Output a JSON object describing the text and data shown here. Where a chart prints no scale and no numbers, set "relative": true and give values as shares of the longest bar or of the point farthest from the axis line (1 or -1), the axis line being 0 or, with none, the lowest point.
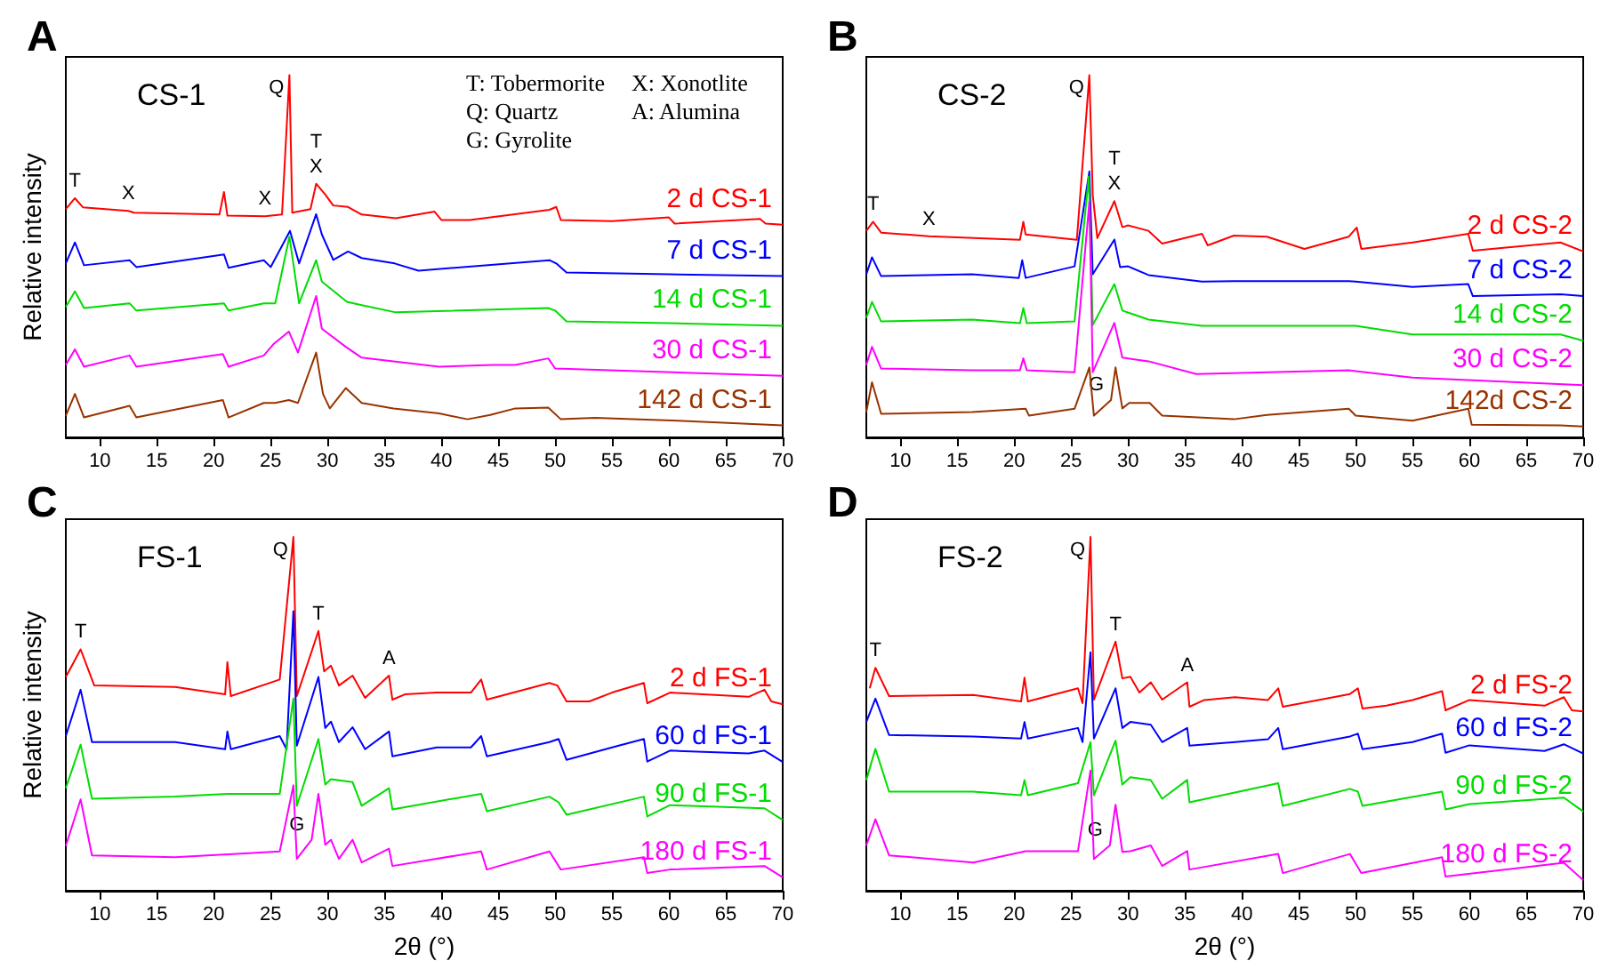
{
  "chart_data": [
    {
      "type": "line",
      "title": "A",
      "subtitle": "CS-1",
      "ylabel": "Relative intensity",
      "relative": true,
      "xlim": [
        7,
        70
      ],
      "xticks": [
        10,
        15,
        20,
        25,
        30,
        35,
        40,
        45,
        50,
        55,
        60,
        65,
        70
      ],
      "annotations": [
        "T: Tobermorite",
        "X: Xonotlite",
        "Q: Quartz",
        "A: Alumina",
        "G: Gyrolite",
        {
          "text": "T",
          "x": 7.8,
          "y": 0.66
        },
        {
          "text": "X",
          "x": 12.5,
          "y": 0.625
        },
        {
          "text": "X",
          "x": 24.5,
          "y": 0.61
        },
        {
          "text": "Q",
          "x": 26.65,
          "y": 1.0
        },
        {
          "text": "T",
          "x": 29,
          "y": 0.7
        },
        {
          "text": "X",
          "x": 29,
          "y": 0.7
        }
      ],
      "series": [
        {
          "name": "2 d CS-1",
          "color": "#ff0000",
          "x": [
            7,
            7.8,
            8.5,
            12.5,
            13,
            20.5,
            20.9,
            21.2,
            24.5,
            26,
            26.65,
            26.9,
            28.5,
            29,
            29.8,
            30.5,
            31.8,
            33,
            36,
            39.4,
            40,
            42.5,
            49.5,
            50.1,
            50.5,
            55,
            60,
            60.5,
            68,
            68.5,
            70
          ],
          "values": [
            0.63,
            0.66,
            0.635,
            0.625,
            0.62,
            0.615,
            0.677,
            0.612,
            0.61,
            0.615,
            1.0,
            0.62,
            0.63,
            0.7,
            0.67,
            0.64,
            0.636,
            0.615,
            0.605,
            0.623,
            0.6,
            0.6,
            0.628,
            0.636,
            0.6,
            0.597,
            0.607,
            0.59,
            0.603,
            0.59,
            0.587
          ]
        },
        {
          "name": "7 d CS-1",
          "color": "#0000ff",
          "x": [
            7,
            7.8,
            8.6,
            12.6,
            13.2,
            20.9,
            21.3,
            24.4,
            25,
            26.7,
            27.5,
            29,
            29.5,
            30.5,
            31.8,
            33,
            35.9,
            38,
            49.5,
            50.1,
            51,
            60,
            70
          ],
          "values": [
            0.48,
            0.538,
            0.475,
            0.489,
            0.47,
            0.505,
            0.468,
            0.489,
            0.47,
            0.57,
            0.48,
            0.616,
            0.56,
            0.49,
            0.513,
            0.495,
            0.48,
            0.46,
            0.489,
            0.48,
            0.455,
            0.45,
            0.445
          ]
        },
        {
          "name": "14 d CS-1",
          "color": "#00dd00",
          "x": [
            7,
            7.8,
            8.6,
            12.6,
            13.2,
            20.9,
            21.3,
            24.4,
            25.4,
            26.65,
            27.5,
            29,
            29.5,
            31.7,
            33,
            36,
            49.4,
            50,
            51,
            60,
            70
          ],
          "values": [
            0.36,
            0.403,
            0.357,
            0.37,
            0.35,
            0.37,
            0.35,
            0.37,
            0.37,
            0.554,
            0.37,
            0.489,
            0.43,
            0.374,
            0.365,
            0.345,
            0.357,
            0.35,
            0.32,
            0.315,
            0.308
          ]
        },
        {
          "name": "30 d CS-1",
          "color": "#ff00ff",
          "x": [
            7,
            7.8,
            8.6,
            12.6,
            13.2,
            20.8,
            21.3,
            24.4,
            25.3,
            26.6,
            27.4,
            29,
            29.5,
            31.6,
            33,
            35.8,
            39.8,
            44.5,
            46.5,
            49.4,
            50,
            70
          ],
          "values": [
            0.2,
            0.243,
            0.195,
            0.226,
            0.195,
            0.23,
            0.195,
            0.226,
            0.259,
            0.292,
            0.234,
            0.39,
            0.3,
            0.25,
            0.22,
            0.21,
            0.195,
            0.2,
            0.2,
            0.218,
            0.19,
            0.17
          ]
        },
        {
          "name": "142 d CS-1",
          "color": "#993300",
          "x": [
            7,
            7.8,
            8.6,
            12.6,
            13.2,
            20.8,
            21.3,
            24.4,
            25.4,
            26.6,
            27.4,
            29,
            29.6,
            30.2,
            31.6,
            33,
            35.8,
            39.8,
            42.3,
            44.3,
            46.5,
            49.4,
            50.5,
            53.5,
            60.8,
            70
          ],
          "values": [
            0.06,
            0.12,
            0.055,
            0.087,
            0.055,
            0.103,
            0.055,
            0.095,
            0.095,
            0.103,
            0.095,
            0.234,
            0.12,
            0.08,
            0.136,
            0.095,
            0.08,
            0.066,
            0.05,
            0.062,
            0.08,
            0.082,
            0.05,
            0.054,
            0.046,
            0.033
          ]
        }
      ]
    },
    {
      "type": "line",
      "title": "B",
      "subtitle": "CS-2",
      "relative": true,
      "xlim": [
        7,
        70
      ],
      "xticks": [
        10,
        15,
        20,
        25,
        30,
        35,
        40,
        45,
        50,
        55,
        60,
        65,
        70
      ],
      "annotations": [
        {
          "text": "T",
          "x": 7.6,
          "y": 0.595
        },
        {
          "text": "X",
          "x": 12.5,
          "y": 0.555
        },
        {
          "text": "Q",
          "x": 26.6,
          "y": 1.0
        },
        {
          "text": "T",
          "x": 28.8,
          "y": 0.652
        },
        {
          "text": "X",
          "x": 28.8,
          "y": 0.652
        },
        {
          "text": "G",
          "x": 28.5,
          "y": 0.103
        }
      ],
      "series": [
        {
          "name": "2 d CS-2",
          "color": "#ff0000",
          "x": [
            7,
            7.6,
            8.3,
            12.5,
            20.5,
            20.8,
            21,
            25.5,
            26.6,
            26.9,
            27.3,
            28.8,
            29.5,
            30,
            31.8,
            33,
            36.5,
            37,
            39.3,
            42.2,
            45.5,
            49.4,
            50.1,
            50.5,
            55,
            59.9,
            60.3,
            68,
            70
          ],
          "values": [
            0.57,
            0.595,
            0.565,
            0.555,
            0.545,
            0.595,
            0.56,
            0.545,
            1.0,
            0.669,
            0.55,
            0.652,
            0.58,
            0.585,
            0.57,
            0.535,
            0.562,
            0.53,
            0.557,
            0.554,
            0.52,
            0.554,
            0.579,
            0.52,
            0.538,
            0.562,
            0.515,
            0.538,
            0.513
          ]
        },
        {
          "name": "7 d CS-2",
          "color": "#0000ff",
          "x": [
            7,
            7.5,
            8.3,
            16.3,
            20.4,
            20.7,
            21,
            25.3,
            26.6,
            26.9,
            28.8,
            29.3,
            30,
            31.8,
            36.5,
            39.3,
            42.2,
            49.4,
            50,
            55,
            59.9,
            60.3,
            68,
            70
          ],
          "values": [
            0.45,
            0.497,
            0.445,
            0.45,
            0.44,
            0.489,
            0.44,
            0.472,
            0.734,
            0.45,
            0.546,
            0.47,
            0.472,
            0.448,
            0.43,
            0.431,
            0.431,
            0.431,
            0.43,
            0.415,
            0.423,
            0.39,
            0.395,
            0.39
          ]
        },
        {
          "name": "14 d CS-2",
          "color": "#00dd00",
          "x": [
            7,
            7.5,
            8.3,
            16.3,
            20.5,
            20.8,
            21.1,
            25.3,
            26.55,
            26.9,
            28.8,
            29.5,
            31.8,
            36.5,
            42.2,
            49.4,
            50,
            55,
            60,
            68,
            70
          ],
          "values": [
            0.33,
            0.374,
            0.32,
            0.325,
            0.315,
            0.357,
            0.315,
            0.32,
            0.72,
            0.31,
            0.423,
            0.35,
            0.325,
            0.308,
            0.308,
            0.308,
            0.308,
            0.284,
            0.284,
            0.284,
            0.267
          ]
        },
        {
          "name": "30 d CS-2",
          "color": "#ff00ff",
          "x": [
            7,
            7.5,
            8.3,
            16.3,
            20.5,
            20.8,
            21.1,
            25.3,
            26.6,
            26.9,
            28.8,
            29.5,
            31.8,
            36,
            49.4,
            55,
            70
          ],
          "values": [
            0.2,
            0.25,
            0.19,
            0.185,
            0.185,
            0.218,
            0.185,
            0.18,
            0.65,
            0.18,
            0.316,
            0.22,
            0.21,
            0.175,
            0.185,
            0.165,
            0.144
          ]
        },
        {
          "name": "142d CS-2",
          "color": "#993300",
          "x": [
            7,
            7.5,
            8.3,
            16.3,
            21,
            21.3,
            25.3,
            26.6,
            27,
            28.5,
            28.9,
            29.5,
            30.1,
            31.9,
            33,
            39.3,
            42.2,
            49.4,
            50,
            55,
            59.9,
            60.2,
            68,
            70
          ],
          "values": [
            0.07,
            0.152,
            0.065,
            0.07,
            0.079,
            0.06,
            0.079,
            0.193,
            0.06,
            0.103,
            0.193,
            0.08,
            0.095,
            0.095,
            0.06,
            0.05,
            0.062,
            0.079,
            0.06,
            0.046,
            0.079,
            0.035,
            0.033,
            0.03
          ]
        }
      ]
    },
    {
      "type": "line",
      "title": "C",
      "subtitle": "FS-1",
      "ylabel": "Relative intensity",
      "xlabel": "2θ (°)",
      "relative": true,
      "xlim": [
        7,
        70
      ],
      "xticks": [
        10,
        15,
        20,
        25,
        30,
        35,
        40,
        45,
        50,
        55,
        60,
        65,
        70
      ],
      "annotations": [
        {
          "text": "T",
          "x": 8.3,
          "y": 0.682
        },
        {
          "text": "Q",
          "x": 27,
          "y": 1.0
        },
        {
          "text": "T",
          "x": 29.2,
          "y": 0.734
        },
        {
          "text": "A",
          "x": 35.4,
          "y": 0.608
        },
        {
          "text": "G",
          "x": 28.6,
          "y": 0.144
        }
      ],
      "series": [
        {
          "name": "2 d FS-1",
          "color": "#ff0000",
          "x": [
            7,
            8.3,
            9.5,
            16.6,
            21,
            21.2,
            21.5,
            25.8,
            27,
            27.3,
            29.2,
            29.7,
            30.3,
            31,
            32.2,
            33.3,
            35.4,
            35.7,
            36.8,
            39.6,
            42.6,
            43.5,
            44,
            49.5,
            50.2,
            51,
            53,
            55,
            57.8,
            58.1,
            60.1,
            67,
            68.4,
            69,
            70
          ],
          "values": [
            0.604,
            0.682,
            0.58,
            0.576,
            0.555,
            0.646,
            0.55,
            0.597,
            1.0,
            0.55,
            0.734,
            0.62,
            0.636,
            0.58,
            0.608,
            0.545,
            0.608,
            0.54,
            0.555,
            0.56,
            0.56,
            0.597,
            0.54,
            0.587,
            0.58,
            0.535,
            0.535,
            0.56,
            0.587,
            0.53,
            0.56,
            0.548,
            0.568,
            0.535,
            0.527
          ]
        },
        {
          "name": "60 d FS-1",
          "color": "#0000ff",
          "x": [
            7,
            8.3,
            9.3,
            16.6,
            21,
            21.2,
            21.5,
            25.8,
            26.4,
            27,
            27.3,
            29.2,
            29.8,
            30.3,
            31,
            32.2,
            33.3,
            35.4,
            35.7,
            39.6,
            42.6,
            43.5,
            44,
            49.5,
            50.3,
            51,
            55,
            57.8,
            58.1,
            60.1,
            67,
            68.4,
            70
          ],
          "values": [
            0.437,
            0.568,
            0.42,
            0.42,
            0.4,
            0.45,
            0.4,
            0.437,
            0.4,
            0.79,
            0.41,
            0.604,
            0.46,
            0.478,
            0.42,
            0.462,
            0.4,
            0.45,
            0.38,
            0.405,
            0.405,
            0.437,
            0.38,
            0.42,
            0.429,
            0.37,
            0.405,
            0.429,
            0.365,
            0.396,
            0.388,
            0.396,
            0.364
          ]
        },
        {
          "name": "90 d FS-1",
          "color": "#00dd00",
          "x": [
            7,
            8.3,
            9.3,
            16.6,
            21.2,
            25.8,
            27,
            27.3,
            29.2,
            29.8,
            30.3,
            32.2,
            33,
            35.4,
            35.7,
            43.5,
            44,
            49.5,
            50.3,
            51,
            57.8,
            58.1,
            60.1,
            68.4,
            70
          ],
          "values": [
            0.29,
            0.413,
            0.26,
            0.266,
            0.274,
            0.274,
            0.543,
            0.24,
            0.429,
            0.3,
            0.315,
            0.307,
            0.24,
            0.29,
            0.23,
            0.274,
            0.225,
            0.266,
            0.25,
            0.215,
            0.266,
            0.21,
            0.242,
            0.233,
            0.2
          ]
        },
        {
          "name": "180 d FS-1",
          "color": "#ff00ff",
          "x": [
            7,
            8.3,
            9.3,
            16.6,
            21.3,
            25.8,
            27,
            27.3,
            28.6,
            29.2,
            29.8,
            30.3,
            31,
            32.2,
            33,
            35.4,
            35.7,
            43.5,
            44,
            49.5,
            50.5,
            57.8,
            58.1,
            60.1,
            68.4,
            70
          ],
          "values": [
            0.127,
            0.258,
            0.1,
            0.095,
            0.103,
            0.111,
            0.298,
            0.09,
            0.144,
            0.274,
            0.13,
            0.144,
            0.09,
            0.144,
            0.08,
            0.119,
            0.07,
            0.111,
            0.06,
            0.111,
            0.06,
            0.095,
            0.05,
            0.06,
            0.07,
            0.038
          ]
        }
      ]
    },
    {
      "type": "line",
      "title": "D",
      "subtitle": "FS-2",
      "xlabel": "2θ (°)",
      "relative": true,
      "xlim": [
        7,
        70
      ],
      "xticks": [
        10,
        15,
        20,
        25,
        30,
        35,
        40,
        45,
        50,
        55,
        60,
        65,
        70
      ],
      "annotations": [
        {
          "text": "T",
          "x": 7.8,
          "y": 0.63
        },
        {
          "text": "Q",
          "x": 26.7,
          "y": 1.0
        },
        {
          "text": "T",
          "x": 28.9,
          "y": 0.704
        },
        {
          "text": "A",
          "x": 35.2,
          "y": 0.589
        },
        {
          "text": "G",
          "x": 28.4,
          "y": 0.128
        }
      ],
      "series": [
        {
          "name": "2 d FS-2",
          "color": "#ff0000",
          "x": [
            7.3,
            7.8,
            9,
            16.4,
            20.6,
            20.9,
            21.2,
            25.6,
            26,
            26.7,
            27,
            28.9,
            29.5,
            30.2,
            31,
            32,
            33,
            35.2,
            35.4,
            36.7,
            39.4,
            42.3,
            43.2,
            43.6,
            49.5,
            50.2,
            50.6,
            52.7,
            55,
            57.6,
            57.9,
            60,
            66.6,
            68.3,
            69,
            70
          ],
          "values": [
            0.572,
            0.63,
            0.55,
            0.553,
            0.535,
            0.602,
            0.535,
            0.572,
            0.53,
            1.0,
            0.54,
            0.704,
            0.6,
            0.605,
            0.56,
            0.589,
            0.54,
            0.589,
            0.52,
            0.539,
            0.547,
            0.539,
            0.572,
            0.52,
            0.556,
            0.572,
            0.515,
            0.523,
            0.539,
            0.564,
            0.51,
            0.539,
            0.523,
            0.547,
            0.51,
            0.507
          ]
        },
        {
          "name": "60 d FS-2",
          "color": "#0000ff",
          "x": [
            7,
            7.8,
            9,
            16.4,
            20.6,
            20.9,
            21.2,
            25.6,
            26,
            26.7,
            27,
            28.9,
            29.5,
            30.2,
            32,
            33,
            35.2,
            35.4,
            39.4,
            42.3,
            43.2,
            43.6,
            49.5,
            50.2,
            50.6,
            55,
            57.6,
            57.9,
            60,
            66.6,
            68.3,
            70
          ],
          "values": [
            0.477,
            0.543,
            0.44,
            0.436,
            0.43,
            0.477,
            0.43,
            0.46,
            0.42,
            0.674,
            0.43,
            0.572,
            0.46,
            0.477,
            0.469,
            0.42,
            0.46,
            0.41,
            0.42,
            0.428,
            0.46,
            0.4,
            0.436,
            0.444,
            0.4,
            0.42,
            0.444,
            0.39,
            0.411,
            0.395,
            0.414,
            0.388
          ]
        },
        {
          "name": "90 d FS-2",
          "color": "#00dd00",
          "x": [
            7,
            7.8,
            9,
            16.4,
            20.6,
            20.9,
            21.2,
            25.6,
            26.7,
            27,
            28.9,
            29.5,
            30.2,
            32,
            33,
            35.2,
            35.4,
            43.2,
            43.6,
            49.5,
            50.2,
            50.6,
            57.6,
            57.9,
            60,
            68.3,
            70
          ],
          "values": [
            0.313,
            0.401,
            0.28,
            0.28,
            0.27,
            0.313,
            0.27,
            0.304,
            0.42,
            0.27,
            0.424,
            0.3,
            0.321,
            0.313,
            0.26,
            0.313,
            0.25,
            0.304,
            0.24,
            0.288,
            0.28,
            0.24,
            0.28,
            0.23,
            0.245,
            0.263,
            0.224
          ]
        },
        {
          "name": "180 d FS-2",
          "color": "#ff00ff",
          "x": [
            7,
            7.8,
            9,
            16.4,
            21,
            25.6,
            26.7,
            27,
            28.4,
            28.9,
            29.5,
            30.2,
            32,
            33,
            35.2,
            35.4,
            43.2,
            43.6,
            49.5,
            50.5,
            57.6,
            57.9,
            68.3,
            70
          ],
          "values": [
            0.128,
            0.202,
            0.1,
            0.08,
            0.112,
            0.112,
            0.34,
            0.09,
            0.128,
            0.243,
            0.11,
            0.112,
            0.128,
            0.07,
            0.112,
            0.06,
            0.104,
            0.05,
            0.104,
            0.05,
            0.095,
            0.04,
            0.079,
            0.03
          ]
        }
      ]
    }
  ]
}
